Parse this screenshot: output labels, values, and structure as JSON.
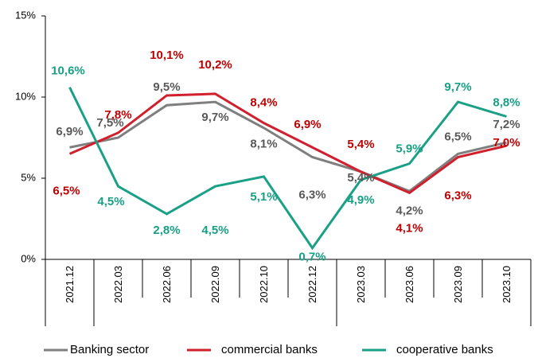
{
  "chart_data": {
    "type": "line",
    "categories": [
      "2021.12",
      "2022.03",
      "2022.06",
      "2022.09",
      "2022.10",
      "2022.12",
      "2023.03",
      "2023.06",
      "2023.09",
      "2023.10"
    ],
    "ylim": [
      0,
      15
    ],
    "yticks": [
      {
        "value": 0,
        "label": "0%"
      },
      {
        "value": 5,
        "label": "5%"
      },
      {
        "value": 10,
        "label": "10%"
      },
      {
        "value": 15,
        "label": "15%"
      }
    ],
    "series": [
      {
        "name": "Banking sector",
        "color": "#7f7f7f",
        "label_color": "#595959",
        "values": [
          6.9,
          7.5,
          9.5,
          9.7,
          8.1,
          6.3,
          5.4,
          4.2,
          6.5,
          7.2
        ],
        "value_labels": [
          "6,9%",
          "7,5%",
          "9,5%",
          "9,7%",
          "8,1%",
          "6,3%",
          "5,4%",
          "4,2%",
          "6,5%",
          "7,2%"
        ]
      },
      {
        "name": "commercial banks",
        "color": "#d0202e",
        "label_color": "#c00000",
        "values": [
          6.5,
          7.8,
          10.1,
          10.2,
          8.4,
          6.9,
          5.4,
          4.1,
          6.3,
          7.0
        ],
        "value_labels": [
          "6,5%",
          "7,8%",
          "10,1%",
          "10,2%",
          "8,4%",
          "6,9%",
          "5,4%",
          "4,1%",
          "6,3%",
          "7,0%"
        ]
      },
      {
        "name": "cooperative banks",
        "color": "#1aa086",
        "label_color": "#17a085",
        "values": [
          10.6,
          4.5,
          2.8,
          4.5,
          5.1,
          0.7,
          4.9,
          5.9,
          9.7,
          8.8
        ],
        "value_labels": [
          "10,6%",
          "4,5%",
          "2,8%",
          "4,5%",
          "5,1%",
          "0,7%",
          "4,9%",
          "5,9%",
          "9,7%",
          "8,8%"
        ]
      }
    ]
  }
}
